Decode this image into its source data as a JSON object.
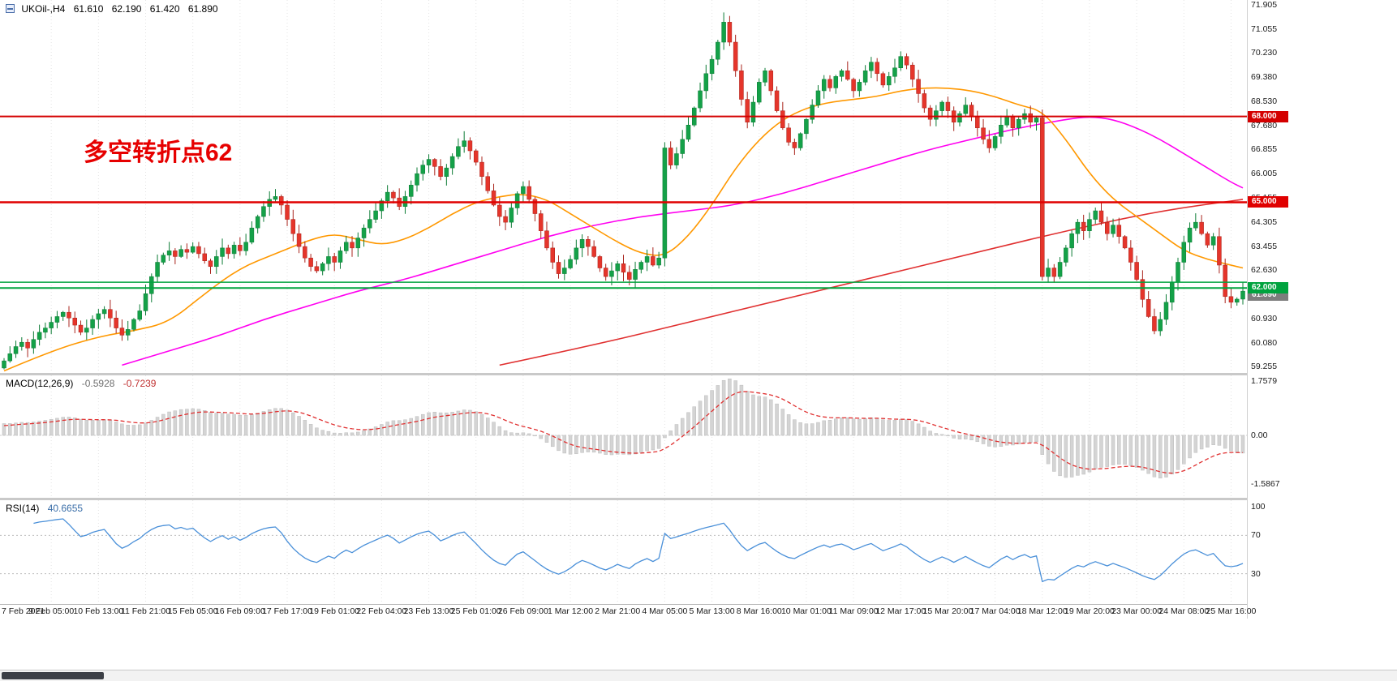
{
  "main_header": {
    "symbol": "UKOil-,H4",
    "open": "61.610",
    "high": "62.190",
    "low": "61.420",
    "close": "61.890"
  },
  "annotation": {
    "text": "多空转折点62",
    "color": "#e60000"
  },
  "indicators": {
    "macd": {
      "label": "MACD(12,26,9)",
      "value1": "-0.5928",
      "value2": "-0.7239"
    },
    "rsi": {
      "label": "RSI(14)",
      "value": "40.6655"
    }
  },
  "chart_data": {
    "type": "candlestick",
    "title": "UKOil-,H4",
    "main": {
      "ylim": [
        59.255,
        71.905
      ],
      "axis_labels": [
        "71.905",
        "71.055",
        "70.230",
        "69.380",
        "68.530",
        "67.680",
        "66.855",
        "66.005",
        "65.155",
        "64.305",
        "63.455",
        "62.630",
        "61.780",
        "60.930",
        "60.080",
        "59.255"
      ],
      "up_color": "#14a148",
      "down_color": "#e5352b",
      "open_rule": "previous_close",
      "wick_max": 0.3,
      "closes": [
        59.45,
        59.7,
        59.95,
        60.1,
        59.9,
        60.2,
        60.45,
        60.6,
        60.8,
        61.0,
        61.15,
        60.95,
        60.7,
        60.45,
        60.6,
        60.9,
        61.1,
        61.25,
        60.95,
        60.6,
        60.35,
        60.55,
        60.9,
        61.2,
        61.8,
        62.4,
        62.9,
        63.15,
        63.3,
        63.1,
        63.35,
        63.25,
        63.45,
        63.2,
        62.95,
        62.75,
        63.1,
        63.4,
        63.2,
        63.5,
        63.3,
        63.6,
        64.1,
        64.5,
        64.85,
        65.1,
        65.2,
        64.9,
        64.4,
        63.9,
        63.45,
        63.05,
        62.75,
        62.6,
        62.85,
        63.1,
        62.9,
        63.3,
        63.6,
        63.4,
        63.75,
        64.1,
        64.4,
        64.7,
        65.05,
        65.35,
        65.15,
        64.85,
        65.2,
        65.6,
        66.0,
        66.3,
        66.5,
        66.25,
        65.9,
        66.2,
        66.6,
        66.95,
        67.15,
        66.8,
        66.4,
        65.9,
        65.4,
        64.9,
        64.5,
        64.3,
        64.8,
        65.3,
        65.55,
        65.1,
        64.6,
        64.0,
        63.4,
        62.9,
        62.5,
        62.7,
        63.0,
        63.4,
        63.7,
        63.45,
        63.1,
        62.7,
        62.4,
        62.6,
        62.85,
        62.55,
        62.3,
        62.65,
        62.9,
        63.1,
        62.8,
        63.05,
        66.9,
        66.3,
        66.7,
        67.2,
        67.7,
        68.3,
        68.9,
        69.5,
        70.0,
        70.6,
        71.3,
        70.6,
        69.6,
        68.6,
        67.8,
        68.5,
        69.2,
        69.6,
        68.9,
        68.2,
        67.6,
        67.1,
        66.9,
        67.4,
        67.9,
        68.4,
        68.9,
        69.3,
        69.0,
        69.4,
        69.6,
        69.3,
        68.9,
        69.2,
        69.6,
        69.9,
        69.5,
        69.1,
        69.4,
        69.7,
        70.1,
        69.8,
        69.3,
        68.8,
        68.3,
        67.9,
        68.2,
        68.5,
        68.2,
        67.8,
        68.1,
        68.4,
        68.0,
        67.6,
        67.2,
        66.9,
        67.3,
        67.7,
        68.0,
        67.6,
        67.9,
        68.1,
        67.8,
        67.95,
        62.4,
        62.7,
        62.4,
        62.9,
        63.4,
        63.9,
        64.3,
        64.0,
        64.4,
        64.7,
        64.3,
        63.9,
        64.2,
        63.8,
        63.4,
        62.9,
        62.3,
        61.6,
        61.0,
        60.5,
        60.9,
        61.5,
        62.2,
        62.9,
        63.6,
        64.1,
        64.3,
        63.9,
        63.5,
        63.8,
        62.8,
        61.7,
        61.5,
        61.61,
        61.89
      ],
      "last_candle": {
        "open": 61.61,
        "high": 62.19,
        "low": 61.42,
        "close": 61.89
      },
      "levels": [
        {
          "price": 68.0,
          "label": "68.000",
          "color": "#d40000",
          "width": 2
        },
        {
          "price": 65.0,
          "label": "65.000",
          "color": "#e00000",
          "width": 2.5
        },
        {
          "price": 62.2,
          "label": "",
          "color": "#00a33e",
          "width": 1.5
        },
        {
          "price": 62.0,
          "label": "62.000",
          "color": "#00a33e",
          "width": 2
        }
      ],
      "current_price": {
        "value": 61.89,
        "label": "61.890",
        "bg": "#7d7d7d"
      },
      "ma_lines": [
        {
          "name": "ma-slow",
          "color": "#e03030",
          "width": 1.6,
          "points": [
            [
              84,
              59.3
            ],
            [
              100,
              60.0
            ],
            [
              116,
              60.8
            ],
            [
              132,
              61.6
            ],
            [
              148,
              62.4
            ],
            [
              164,
              63.2
            ],
            [
              180,
              64.0
            ],
            [
              196,
              64.7
            ],
            [
              210,
              65.1
            ]
          ]
        },
        {
          "name": "ma-mid",
          "color": "#ff00f0",
          "width": 1.6,
          "points": [
            [
              20,
              59.3
            ],
            [
              28,
              59.8
            ],
            [
              36,
              60.3
            ],
            [
              44,
              60.9
            ],
            [
              52,
              61.4
            ],
            [
              60,
              61.9
            ],
            [
              68,
              62.3
            ],
            [
              76,
              62.8
            ],
            [
              84,
              63.3
            ],
            [
              92,
              63.8
            ],
            [
              100,
              64.2
            ],
            [
              108,
              64.5
            ],
            [
              116,
              64.7
            ],
            [
              124,
              64.9
            ],
            [
              132,
              65.3
            ],
            [
              140,
              65.8
            ],
            [
              148,
              66.3
            ],
            [
              156,
              66.8
            ],
            [
              164,
              67.2
            ],
            [
              172,
              67.6
            ],
            [
              180,
              67.9
            ],
            [
              184,
              68.0
            ],
            [
              188,
              67.9
            ],
            [
              192,
              67.6
            ],
            [
              196,
              67.2
            ],
            [
              200,
              66.7
            ],
            [
              204,
              66.2
            ],
            [
              208,
              65.7
            ],
            [
              210,
              65.5
            ]
          ]
        },
        {
          "name": "ma-fast",
          "color": "#ff9800",
          "width": 1.6,
          "points": [
            [
              0,
              59.1
            ],
            [
              8,
              59.8
            ],
            [
              16,
              60.3
            ],
            [
              22,
              60.5
            ],
            [
              28,
              60.8
            ],
            [
              34,
              61.8
            ],
            [
              40,
              62.7
            ],
            [
              46,
              63.2
            ],
            [
              52,
              63.7
            ],
            [
              56,
              63.9
            ],
            [
              60,
              63.7
            ],
            [
              64,
              63.5
            ],
            [
              68,
              63.7
            ],
            [
              72,
              64.1
            ],
            [
              76,
              64.6
            ],
            [
              80,
              65.0
            ],
            [
              84,
              65.2
            ],
            [
              88,
              65.3
            ],
            [
              92,
              65.1
            ],
            [
              96,
              64.6
            ],
            [
              100,
              64.1
            ],
            [
              104,
              63.6
            ],
            [
              108,
              63.2
            ],
            [
              112,
              63.1
            ],
            [
              116,
              63.8
            ],
            [
              120,
              64.9
            ],
            [
              124,
              66.2
            ],
            [
              128,
              67.2
            ],
            [
              132,
              67.9
            ],
            [
              136,
              68.3
            ],
            [
              140,
              68.5
            ],
            [
              144,
              68.6
            ],
            [
              148,
              68.7
            ],
            [
              152,
              68.9
            ],
            [
              156,
              69.0
            ],
            [
              160,
              69.0
            ],
            [
              164,
              68.9
            ],
            [
              168,
              68.7
            ],
            [
              172,
              68.4
            ],
            [
              176,
              68.2
            ],
            [
              180,
              67.2
            ],
            [
              184,
              66.0
            ],
            [
              188,
              65.1
            ],
            [
              192,
              64.5
            ],
            [
              196,
              63.9
            ],
            [
              200,
              63.3
            ],
            [
              204,
              63.0
            ],
            [
              208,
              62.8
            ],
            [
              210,
              62.7
            ]
          ]
        }
      ]
    },
    "macd": {
      "params": [
        12,
        26,
        9
      ],
      "axis_labels": [
        "1.7579",
        "0.00",
        "-1.5867"
      ],
      "histogram_color": "#d4d4d4",
      "histogram_stroke": "#bdbdbd",
      "signal_color": "#e03030",
      "seed": {
        "ema12": -0.15,
        "ema26": -0.55,
        "signal": 0.3
      }
    },
    "rsi": {
      "period": 14,
      "levels": [
        70,
        30
      ],
      "axis_labels": [
        "100",
        "70",
        "30"
      ],
      "line_color": "#4a90d9"
    }
  },
  "time_axis": {
    "candles_per_label": 8,
    "labels": [
      "7 Feb 2021",
      "9 Feb 05:00",
      "10 Feb 13:00",
      "11 Feb 21:00",
      "15 Feb 05:00",
      "16 Feb 09:00",
      "17 Feb 17:00",
      "19 Feb 01:00",
      "22 Feb 04:00",
      "23 Feb 13:00",
      "25 Feb 01:00",
      "26 Feb 09:00",
      "1 Mar 12:00",
      "2 Mar 21:00",
      "4 Mar 05:00",
      "5 Mar 13:00",
      "8 Mar 16:00",
      "10 Mar 01:00",
      "11 Mar 09:00",
      "12 Mar 17:00",
      "15 Mar 20:00",
      "17 Mar 04:00",
      "18 Mar 12:00",
      "19 Mar 20:00",
      "23 Mar 00:00",
      "24 Mar 08:00",
      "25 Mar 16:00"
    ]
  }
}
